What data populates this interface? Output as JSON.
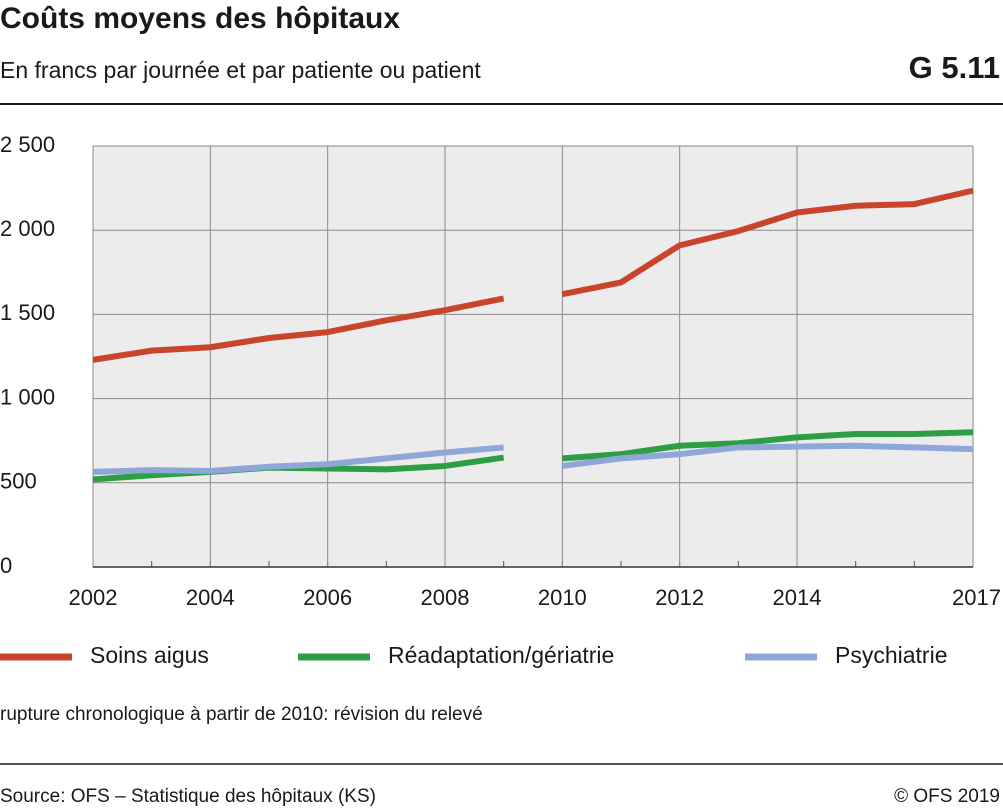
{
  "chart_data": {
    "type": "line",
    "title": "Coûts moyens des hôpitaux",
    "subtitle": "En francs par journée et par patiente ou patient",
    "chart_id": "G 5.11",
    "x": [
      2002,
      2003,
      2004,
      2005,
      2006,
      2007,
      2008,
      2009,
      2010,
      2011,
      2012,
      2013,
      2014,
      2015,
      2016,
      2017
    ],
    "series": [
      {
        "name": "Soins aigus",
        "color": "#c8452c",
        "values": [
          1230,
          1285,
          1305,
          1360,
          1395,
          1465,
          1525,
          1595,
          1620,
          1690,
          1910,
          1995,
          2105,
          2145,
          2155,
          2235
        ]
      },
      {
        "name": "Réadaptation/gériatrie",
        "color": "#2e9e45",
        "values": [
          520,
          545,
          565,
          590,
          585,
          580,
          600,
          650,
          645,
          670,
          720,
          735,
          770,
          790,
          790,
          800
        ]
      },
      {
        "name": "Psychiatrie",
        "color": "#8fa6d8",
        "values": [
          565,
          575,
          570,
          595,
          610,
          645,
          680,
          710,
          600,
          645,
          670,
          710,
          715,
          720,
          710,
          700
        ]
      }
    ],
    "break_between": [
      2009,
      2010
    ],
    "xlim": [
      2002,
      2017
    ],
    "xticks": [
      2002,
      2004,
      2006,
      2008,
      2010,
      2012,
      2014,
      2017
    ],
    "ylim": [
      0,
      2500
    ],
    "yticks": [
      0,
      500,
      {
        "value": 1000,
        "label": "1 000"
      },
      {
        "value": 1500,
        "label": "1 500"
      },
      {
        "value": 2000,
        "label": "2 000"
      },
      {
        "value": 2500,
        "label": "2 500"
      }
    ],
    "grid": true,
    "note": "rupture chronologique à partir de 2010: révision du relevé",
    "source": "Source: OFS – Statistique des hôpitaux (KS)",
    "copyright": "© OFS 2019"
  }
}
